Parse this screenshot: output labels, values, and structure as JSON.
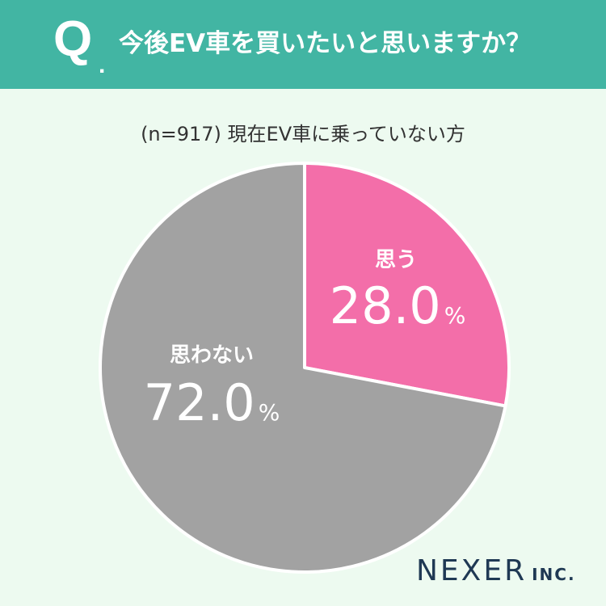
{
  "header": {
    "q_letter": "Q",
    "q_dot": ".",
    "question": "今後EV車を買いたいと思いますか？"
  },
  "subtitle": "(n=917) 現在EV車に乗っていない方",
  "colors": {
    "header_bg": "#42b5a3",
    "page_bg": "#edfaf0",
    "yes": "#f36ea9",
    "no": "#a2a2a2",
    "logo": "#1f3954"
  },
  "chart_data": {
    "type": "pie",
    "title": "今後EV車を買いたいと思いますか？",
    "slices": [
      {
        "label": "思う",
        "value": 28.0,
        "display": "28.0",
        "unit": "%",
        "color": "#f36ea9"
      },
      {
        "label": "思わない",
        "value": 72.0,
        "display": "72.0",
        "unit": "%",
        "color": "#a2a2a2"
      }
    ]
  },
  "footer": {
    "brand": "NEXER",
    "suffix": "INC."
  }
}
